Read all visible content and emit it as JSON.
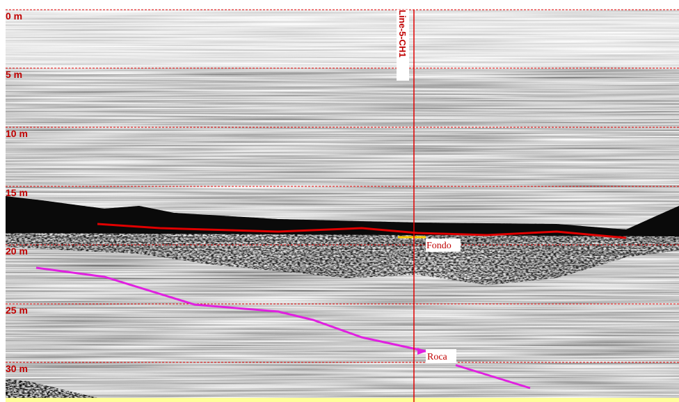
{
  "depth_labels": [
    "0 m",
    "5 m",
    "10 m",
    "15 m",
    "20 m",
    "25 m",
    "30 m"
  ],
  "line_label": "Line-5-CH1",
  "annotations": {
    "bottom": "Fondo",
    "rock": "Roca"
  }
}
